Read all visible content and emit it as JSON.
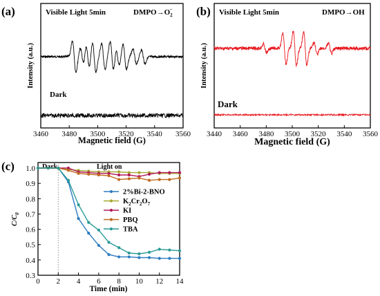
{
  "chart_data": [
    {
      "panel": "(a)",
      "type": "line",
      "xlabel": "Magnetic field (G)",
      "ylabel": "Intensity (a.u.)",
      "xlim": [
        3460,
        3560
      ],
      "xticks": [
        3460,
        3480,
        3500,
        3520,
        3540,
        3560
      ],
      "annotations": {
        "top_left": "Visible Light 5min",
        "top_right_main": "DMPO",
        "top_right_arrow": "→",
        "top_right_species": "O",
        "top_right_sub": "2",
        "top_right_sup": "−",
        "dark": "Dark"
      },
      "series": [
        {
          "role": "light",
          "color": "#000000",
          "lines": [
            {
              "center": 3483.5,
              "amp": 1.0
            },
            {
              "center": 3489.0,
              "amp": 0.55
            },
            {
              "center": 3493.0,
              "amp": 0.75
            },
            {
              "center": 3497.5,
              "amp": 1.0
            },
            {
              "center": 3504.0,
              "amp": 0.85
            },
            {
              "center": 3510.0,
              "amp": 1.0
            },
            {
              "center": 3514.0,
              "amp": 0.55
            },
            {
              "center": 3519.0,
              "amp": 0.8
            },
            {
              "center": 3526.0,
              "amp": 0.5
            },
            {
              "center": 3532.0,
              "amp": 0.45
            }
          ]
        },
        {
          "role": "dark",
          "color": "#000000"
        }
      ]
    },
    {
      "panel": "(b)",
      "type": "line",
      "xlabel": "Magnetic field (G)",
      "ylabel": "Intensity (a.u.)",
      "xlim": [
        3440,
        3560
      ],
      "xticks": [
        3440,
        3460,
        3480,
        3500,
        3520,
        3540,
        3560
      ],
      "annotations": {
        "top_left": "Visible Light 5min",
        "top_right_main": "DMPO",
        "top_right_arrow": "→",
        "top_right_species": "OH",
        "dark": "Dark"
      },
      "series": [
        {
          "role": "light",
          "color": "#e8141a",
          "lines": [
            {
              "center": 3479.0,
              "amp": 0.25
            },
            {
              "center": 3494.0,
              "amp": 0.9
            },
            {
              "center": 3502.0,
              "amp": 1.0
            },
            {
              "center": 3510.0,
              "amp": 0.95
            },
            {
              "center": 3518.0,
              "amp": 0.35
            },
            {
              "center": 3529.0,
              "amp": 0.3
            }
          ]
        },
        {
          "role": "dark",
          "color": "#e8141a"
        }
      ]
    },
    {
      "panel": "(c)",
      "type": "line",
      "xlabel": "Time (min)",
      "ylabel_main": "C/C",
      "ylabel_sub": "0",
      "xlim": [
        0,
        14
      ],
      "ylim": [
        0.3,
        1.0
      ],
      "xticks": [
        0,
        2,
        4,
        6,
        8,
        10,
        12,
        14
      ],
      "yticks": [
        0.3,
        0.4,
        0.5,
        0.6,
        0.7,
        0.8,
        0.9,
        1.0
      ],
      "annotations": {
        "dark": "Dark",
        "light": "Light on",
        "divider_x": 2
      },
      "x": [
        0,
        1,
        2,
        3,
        4,
        5,
        6,
        7,
        8,
        9,
        10,
        11,
        12,
        13,
        14
      ],
      "series": [
        {
          "name": "2%Bi-2-BNO",
          "color": "#2b7bc0",
          "values": [
            1.0,
            1.0,
            1.0,
            0.91,
            0.67,
            0.575,
            0.495,
            0.435,
            0.42,
            0.42,
            0.415,
            0.415,
            0.41,
            0.41,
            0.41
          ]
        },
        {
          "name": "K2Cr2O7",
          "name_main": "K",
          "name_sub1": "2",
          "name_mid": "Cr",
          "name_sub2": "2",
          "name_end": "O",
          "name_sub3": "7",
          "color": "#a8a832",
          "values": [
            1.0,
            1.0,
            1.0,
            0.99,
            0.985,
            0.98,
            0.975,
            0.975,
            0.975,
            0.97,
            0.97,
            0.97,
            0.965,
            0.965,
            0.965
          ]
        },
        {
          "name": "KI",
          "color": "#b0185a",
          "values": [
            1.0,
            1.0,
            1.0,
            1.0,
            0.975,
            0.97,
            0.965,
            0.965,
            0.955,
            0.955,
            0.945,
            0.96,
            0.97,
            0.97,
            0.97
          ]
        },
        {
          "name": "PBQ",
          "color": "#c06a1c",
          "values": [
            1.0,
            1.0,
            1.0,
            0.985,
            0.965,
            0.96,
            0.955,
            0.95,
            0.925,
            0.93,
            0.935,
            0.92,
            0.925,
            0.925,
            0.935
          ]
        },
        {
          "name": "TBA",
          "color": "#2a9a96",
          "values": [
            1.0,
            1.0,
            1.0,
            0.92,
            0.76,
            0.645,
            0.595,
            0.515,
            0.48,
            0.445,
            0.44,
            0.45,
            0.47,
            0.465,
            0.46
          ]
        }
      ]
    }
  ]
}
